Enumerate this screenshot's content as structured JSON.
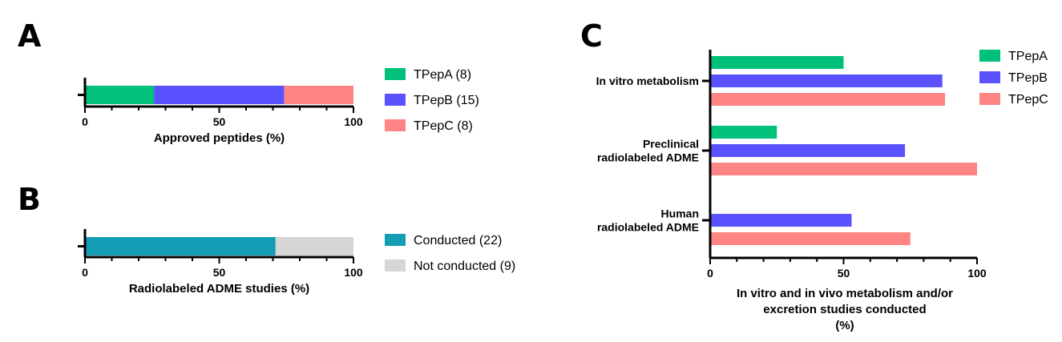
{
  "panels": {
    "A": {
      "letter": "A",
      "chart_data": {
        "type": "bar",
        "orientation": "horizontal",
        "stacked": true,
        "xlabel": "Approved peptides (%)",
        "xlim": [
          0,
          100
        ],
        "xticks": [
          "0",
          "50",
          "100"
        ],
        "series": [
          {
            "name": "TPepA (8)",
            "value": 25.8,
            "color": "#00c07a"
          },
          {
            "name": "TPepB (15)",
            "value": 48.4,
            "color": "#5a52ff"
          },
          {
            "name": "TPepC (8)",
            "value": 25.8,
            "color": "#ff8484"
          }
        ],
        "legend": "right"
      }
    },
    "B": {
      "letter": "B",
      "chart_data": {
        "type": "bar",
        "orientation": "horizontal",
        "stacked": true,
        "xlabel": "Radiolabeled ADME studies (%)",
        "xlim": [
          0,
          100
        ],
        "xticks": [
          "0",
          "50",
          "100"
        ],
        "series": [
          {
            "name": "Conducted (22)",
            "value": 71.0,
            "color": "#139db5"
          },
          {
            "name": "Not conducted (9)",
            "value": 29.0,
            "color": "#d6d6d6"
          }
        ],
        "legend": "right"
      }
    },
    "C": {
      "letter": "C",
      "chart_data": {
        "type": "bar",
        "orientation": "horizontal",
        "stacked": false,
        "categories": [
          [
            "In vitro metabolism"
          ],
          [
            "Preclinical",
            "radiolabeled ADME"
          ],
          [
            "Human",
            "radiolabeled ADME"
          ]
        ],
        "xlabel_lines": [
          "In vitro and in vivo metabolism and/or",
          "excretion studies conducted",
          "(%)"
        ],
        "xlim": [
          0,
          100
        ],
        "xticks": [
          "0",
          "50",
          "100"
        ],
        "series": [
          {
            "name": "TPepA",
            "color": "#00c07a",
            "values": [
              50,
              25,
              0
            ]
          },
          {
            "name": "TPepB",
            "color": "#5a52ff",
            "values": [
              87,
              73,
              53
            ]
          },
          {
            "name": "TPepC",
            "color": "#ff8484",
            "values": [
              88,
              100,
              75
            ]
          }
        ],
        "legend": "top-right"
      }
    }
  }
}
